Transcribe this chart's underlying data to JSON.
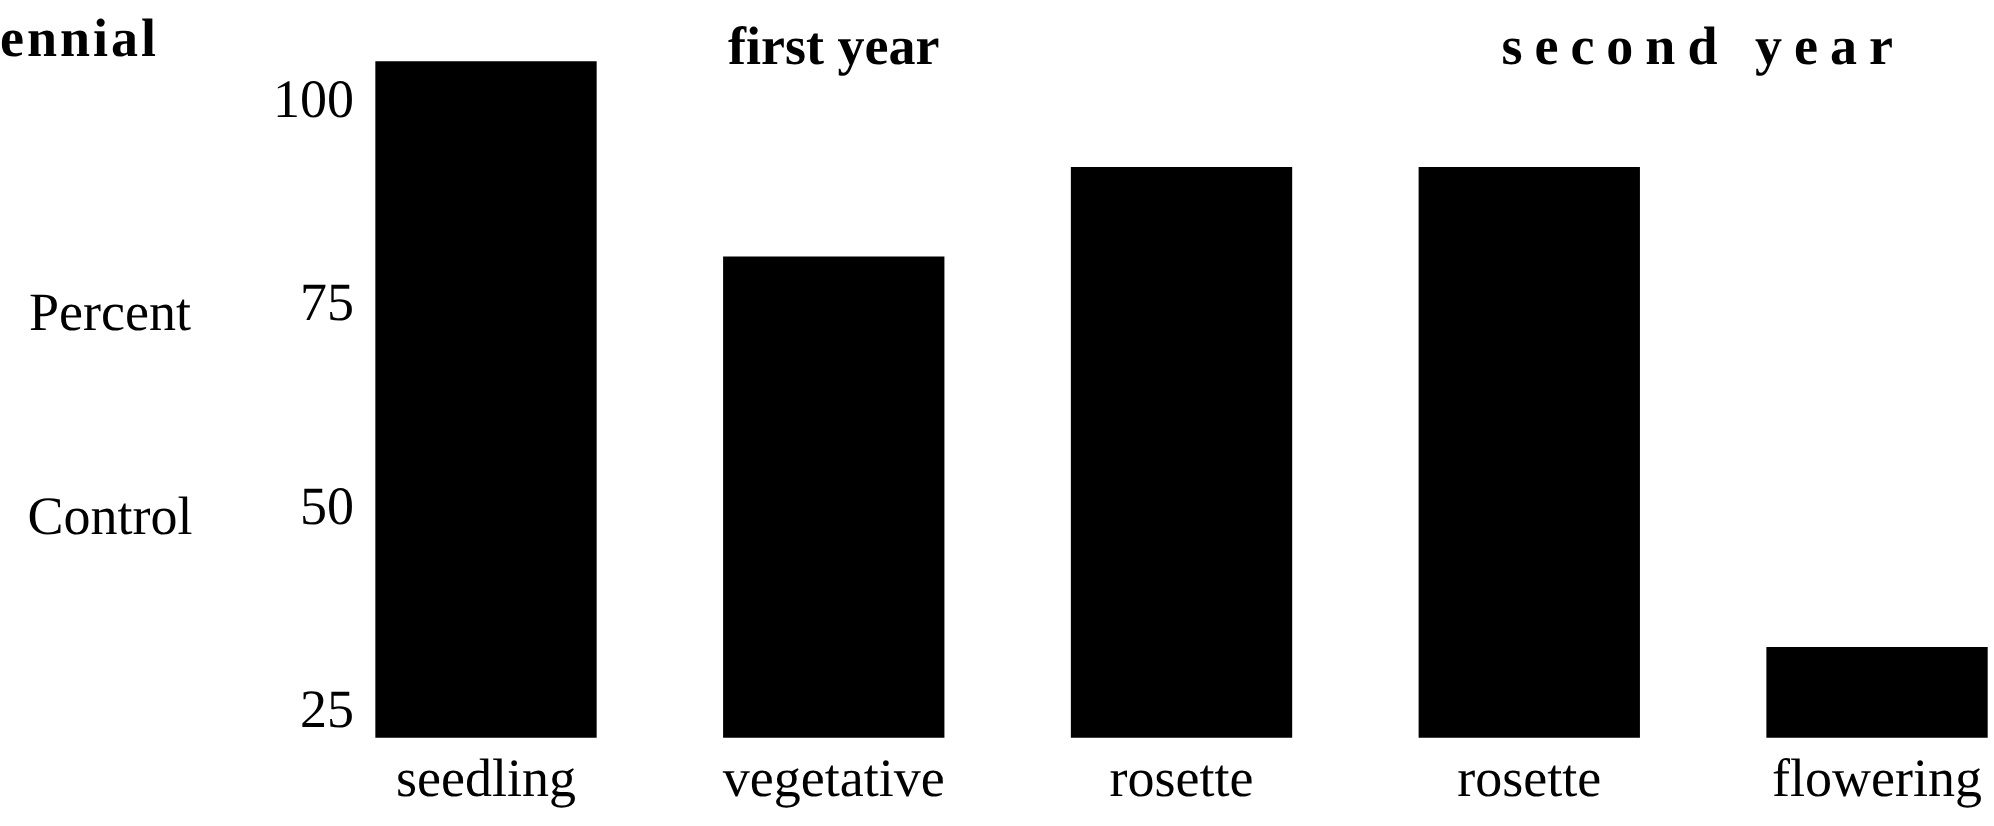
{
  "chart_data": {
    "type": "bar",
    "title": "ennial",
    "ylabel": "Percent Control",
    "annotations": [
      "first year",
      "second year"
    ],
    "categories": [
      "seedling",
      "vegetative",
      "rosette",
      "rosette",
      "flowering"
    ],
    "values": [
      105,
      81,
      92,
      92,
      33
    ],
    "color": "#000000",
    "ylim": [
      22,
      105
    ],
    "yticks": [
      25,
      50,
      75,
      100
    ],
    "grid": false,
    "legend": false
  }
}
